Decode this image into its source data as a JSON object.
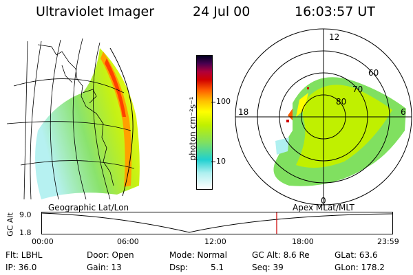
{
  "header": {
    "title": "Ultraviolet Imager",
    "date": "24 Jul 00",
    "time": "16:03:57 UT"
  },
  "colorbar": {
    "label": "photon cm⁻²s⁻¹",
    "ticks": [
      {
        "label": "100",
        "value": 100
      },
      {
        "label": "10",
        "value": 10
      }
    ]
  },
  "polar": {
    "hour_labels": {
      "top": "12",
      "left": "18",
      "right": "6",
      "bottom": "0"
    },
    "lat_labels": [
      "60",
      "70",
      "80"
    ]
  },
  "panel_labels": {
    "left": "Geographic Lat/Lon",
    "right": "Apex MLat/MLT"
  },
  "timeline": {
    "axis_label": "GC Alt",
    "y_ticks": [
      "9.0",
      "1.8"
    ],
    "x_ticks": [
      "00:00",
      "06:00",
      "12:00",
      "18:00",
      "23:59"
    ],
    "marker_time": "16:03:57",
    "marker_color": "#cc0000"
  },
  "info": {
    "row1": [
      "Flt: LBHL",
      "Door: Open",
      "Mode: Normal",
      "GC Alt: 8.6 Re",
      "GLat: 63.6"
    ],
    "row2": [
      "IP: 36.0",
      "Gain: 13",
      "Dsp:",
      "5.1",
      "Seq: 39",
      "GLon: 178.2"
    ]
  },
  "colors": {
    "colorbar": [
      "#ffffff",
      "#b0f0f0",
      "#20d0d0",
      "#80e060",
      "#c0f000",
      "#ffff00",
      "#ffc000",
      "#ff6000",
      "#d00000",
      "#b0003a",
      "#4a0050",
      "#000020"
    ]
  }
}
